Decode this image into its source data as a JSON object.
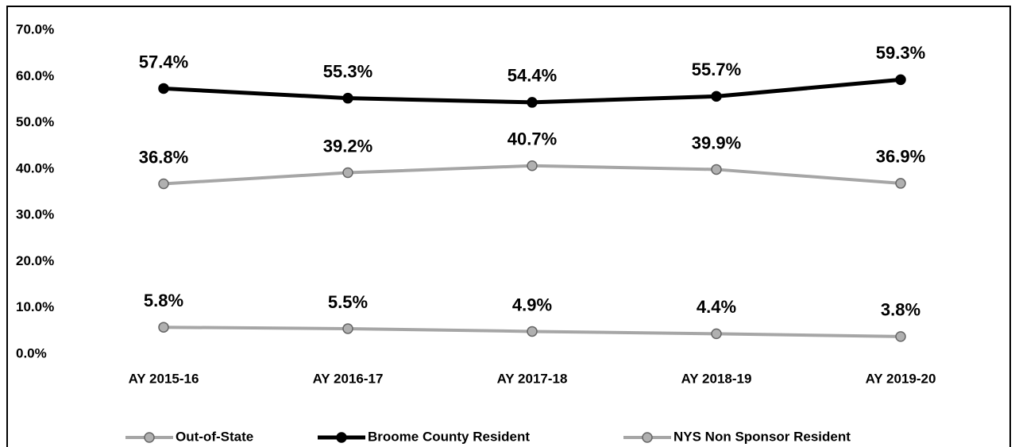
{
  "chart_data": {
    "type": "line",
    "categories": [
      "AY 2015-16",
      "AY 2016-17",
      "AY 2017-18",
      "AY 2018-19",
      "AY 2019-20"
    ],
    "series": [
      {
        "name": "Out-of-State",
        "color": "#a6a6a6",
        "values": [
          5.8,
          5.5,
          4.9,
          4.4,
          3.8
        ],
        "value_labels": [
          "5.8%",
          "5.5%",
          "4.9%",
          "4.4%",
          "3.8%"
        ]
      },
      {
        "name": "Broome County Resident",
        "color": "#000000",
        "values": [
          57.4,
          55.3,
          54.4,
          55.7,
          59.3
        ],
        "value_labels": [
          "57.4%",
          "55.3%",
          "54.4%",
          "55.7%",
          "59.3%"
        ]
      },
      {
        "name": "NYS Non Sponsor Resident",
        "color": "#a6a6a6",
        "values": [
          36.8,
          39.2,
          40.7,
          39.9,
          36.9
        ],
        "value_labels": [
          "36.8%",
          "39.2%",
          "40.7%",
          "39.9%",
          "36.9%"
        ]
      }
    ],
    "ylim": [
      0,
      70
    ],
    "yticks": [
      {
        "value": 0,
        "label": "0.0%"
      },
      {
        "value": 10,
        "label": "10.0%"
      },
      {
        "value": 20,
        "label": "20.0%"
      },
      {
        "value": 30,
        "label": "30.0%"
      },
      {
        "value": 40,
        "label": "40.0%"
      },
      {
        "value": 50,
        "label": "50.0%"
      },
      {
        "value": 60,
        "label": "60.0%"
      },
      {
        "value": 70,
        "label": "70.0%"
      }
    ],
    "grid": false,
    "legend": "bottom"
  }
}
